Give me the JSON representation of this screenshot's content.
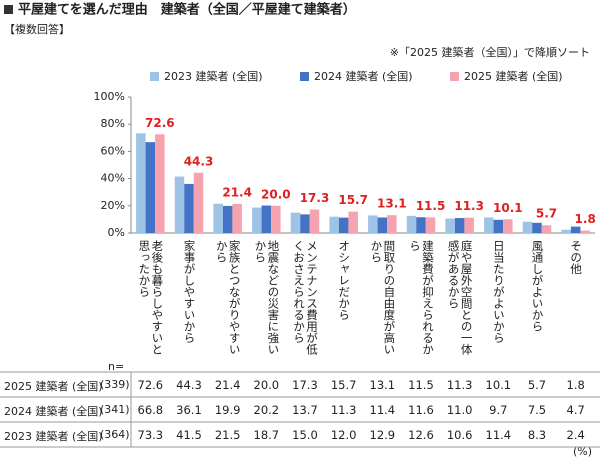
{
  "chart_data": {
    "type": "bar",
    "title": "平屋建てを選んだ理由　建築者（全国／平屋建て建築者）",
    "subtitle": "【複数回答】",
    "note": "※「2025 建築者（全国）」で降順ソート",
    "n_label": "n=",
    "unit_label": "(%)",
    "categories": [
      "老後も暮らしやすいと思ったから",
      "家事がしやすいから",
      "家族とつながりやすいから",
      "地震などの災害に強いから",
      "メンテナンス費用が低くおさえられるから",
      "オシャレだから",
      "間取りの自由度が高いから",
      "建築費が抑えられるから",
      "庭や屋外空間との一体感があるから",
      "日当たりがよいから",
      "風通しがよいから",
      "その他"
    ],
    "series": [
      {
        "name": "2023 建築者 (全国)",
        "n": "(364)",
        "color": "#9dc3e6",
        "values": [
          73.3,
          41.5,
          21.5,
          18.7,
          15.0,
          12.0,
          12.9,
          12.6,
          10.6,
          11.4,
          8.3,
          2.4
        ],
        "value_labels": [
          "73.3",
          "41.5",
          "21.5",
          "18.7",
          "15.0",
          "12.0",
          "12.9",
          "12.6",
          "10.6",
          "11.4",
          "8.3",
          "2.4"
        ]
      },
      {
        "name": "2024 建築者 (全国)",
        "n": "(341)",
        "color": "#4472c4",
        "values": [
          66.8,
          36.1,
          19.9,
          20.2,
          13.7,
          11.3,
          11.4,
          11.6,
          11.0,
          9.7,
          7.5,
          4.7
        ],
        "value_labels": [
          "66.8",
          "36.1",
          "19.9",
          "20.2",
          "13.7",
          "11.3",
          "11.4",
          "11.6",
          "11.0",
          "9.7",
          "7.5",
          "4.7"
        ]
      },
      {
        "name": "2025 建築者 (全国)",
        "n": "(339)",
        "color": "#f5a3ae",
        "show_labels": true,
        "label_color": "#e02020",
        "values": [
          72.6,
          44.3,
          21.4,
          20.0,
          17.3,
          15.7,
          13.1,
          11.5,
          11.3,
          10.1,
          5.7,
          1.8
        ],
        "value_labels": [
          "72.6",
          "44.3",
          "21.4",
          "20.0",
          "17.3",
          "15.7",
          "13.1",
          "11.5",
          "11.3",
          "10.1",
          "5.7",
          "1.8"
        ]
      }
    ],
    "ylim": [
      0,
      100
    ],
    "yticks": [
      {
        "value": 0,
        "label": "0%"
      },
      {
        "value": 20,
        "label": "20%"
      },
      {
        "value": 40,
        "label": "40%"
      },
      {
        "value": 60,
        "label": "60%"
      },
      {
        "value": 80,
        "label": "80%"
      },
      {
        "value": 100,
        "label": "100%"
      }
    ]
  }
}
